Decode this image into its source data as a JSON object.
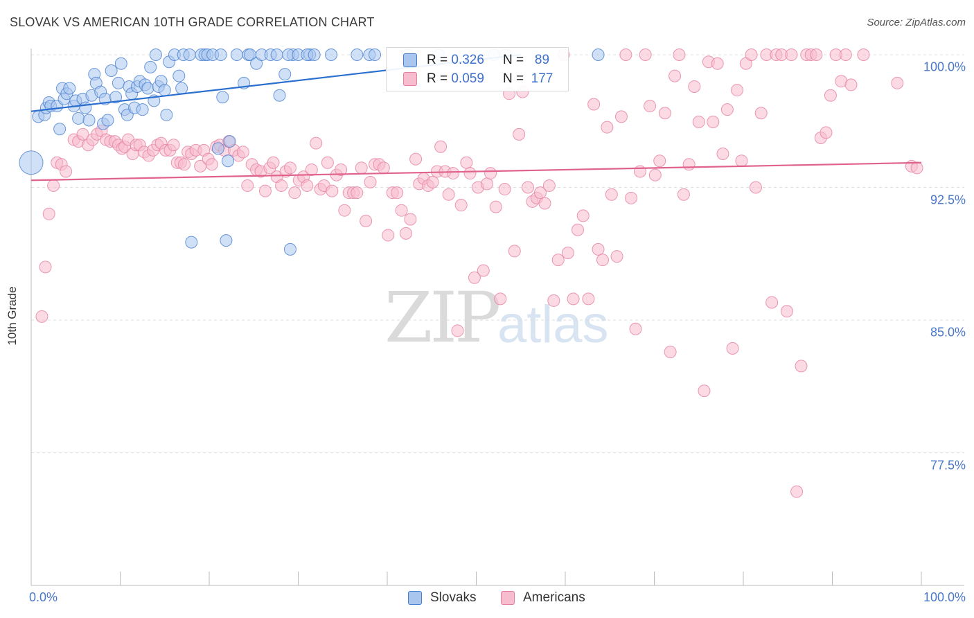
{
  "header": {
    "title": "SLOVAK VS AMERICAN 10TH GRADE CORRELATION CHART",
    "source": "Source: ZipAtlas.com"
  },
  "watermark": {
    "zip": "ZIP",
    "atlas": "atlas"
  },
  "legend": {
    "rows": [
      {
        "r_label": "R =",
        "r_value": "0.326",
        "n_label": "N =",
        "n_value": "89"
      },
      {
        "r_label": "R =",
        "r_value": "0.059",
        "n_label": "N =",
        "n_value": "177"
      }
    ]
  },
  "bottom_legend": {
    "slovaks": "Slovaks",
    "americans": "Americans"
  },
  "colors": {
    "blue_fill": "#a9c6ef",
    "blue_stroke": "#4a7fd0",
    "blue_line": "#2a6fd0",
    "pink_fill": "#f7bccd",
    "pink_stroke": "#e57fa0",
    "pink_line": "#e0628d",
    "axis_label": "#4a78c8",
    "grid": "#dcdcdc"
  },
  "chart_data": {
    "type": "scatter",
    "title": "SLOVAK VS AMERICAN 10TH GRADE CORRELATION CHART",
    "xlabel": "",
    "ylabel": "10th Grade",
    "xlim": [
      0,
      100
    ],
    "ylim": [
      70,
      100.5
    ],
    "y_ticks": [
      {
        "value": 100.0,
        "label": "100.0%"
      },
      {
        "value": 92.5,
        "label": "92.5%"
      },
      {
        "value": 85.0,
        "label": "85.0%"
      },
      {
        "value": 77.5,
        "label": "77.5%"
      }
    ],
    "x_ticks": [
      {
        "value": 0,
        "label": "0.0%"
      },
      {
        "value": 100,
        "label": "100.0%"
      }
    ],
    "grid": true,
    "legend_position": "top-center",
    "series": [
      {
        "name": "Slovaks",
        "R": 0.326,
        "N": 89,
        "trend": {
          "x": [
            0,
            55
          ],
          "y": [
            96.8,
            100.0
          ]
        },
        "points": [
          [
            0,
            93.9
          ],
          [
            0.8,
            96.5
          ],
          [
            1.5,
            96.6
          ],
          [
            1.7,
            97.0
          ],
          [
            2.0,
            97.3
          ],
          [
            2.2,
            97.1
          ],
          [
            2.9,
            97.1
          ],
          [
            3.2,
            95.8
          ],
          [
            3.5,
            98.1
          ],
          [
            3.7,
            97.5
          ],
          [
            4.0,
            97.8
          ],
          [
            4.3,
            98.1
          ],
          [
            4.8,
            97.1
          ],
          [
            5.0,
            97.4
          ],
          [
            5.3,
            96.4
          ],
          [
            5.8,
            97.5
          ],
          [
            6.1,
            97.0
          ],
          [
            6.5,
            96.3
          ],
          [
            6.8,
            97.7
          ],
          [
            7.1,
            98.9
          ],
          [
            7.3,
            98.4
          ],
          [
            7.8,
            97.9
          ],
          [
            8.1,
            96.1
          ],
          [
            8.3,
            97.5
          ],
          [
            8.6,
            96.3
          ],
          [
            9.0,
            99.1
          ],
          [
            9.5,
            97.6
          ],
          [
            9.8,
            98.4
          ],
          [
            10.1,
            99.5
          ],
          [
            10.5,
            96.9
          ],
          [
            10.8,
            96.6
          ],
          [
            11.0,
            98.2
          ],
          [
            11.3,
            97.8
          ],
          [
            11.6,
            97.0
          ],
          [
            11.9,
            98.2
          ],
          [
            12.2,
            98.5
          ],
          [
            12.5,
            96.9
          ],
          [
            12.8,
            98.3
          ],
          [
            13.1,
            98.1
          ],
          [
            13.4,
            99.3
          ],
          [
            13.8,
            97.4
          ],
          [
            14.0,
            100
          ],
          [
            14.3,
            98.2
          ],
          [
            14.6,
            98.5
          ],
          [
            15.0,
            98.0
          ],
          [
            15.2,
            96.6
          ],
          [
            15.5,
            99.6
          ],
          [
            16.1,
            100
          ],
          [
            16.6,
            98.8
          ],
          [
            16.9,
            98.1
          ],
          [
            17.1,
            100
          ],
          [
            17.8,
            100
          ],
          [
            18.0,
            89.4
          ],
          [
            19.1,
            100
          ],
          [
            19.5,
            100
          ],
          [
            19.8,
            100
          ],
          [
            20.4,
            100
          ],
          [
            21.0,
            94.7
          ],
          [
            21.3,
            100
          ],
          [
            21.5,
            97.6
          ],
          [
            21.9,
            89.5
          ],
          [
            22.3,
            95.1
          ],
          [
            22.1,
            94.0
          ],
          [
            23.1,
            100
          ],
          [
            23.9,
            98.4
          ],
          [
            24.4,
            100
          ],
          [
            24.6,
            100
          ],
          [
            25.3,
            99.5
          ],
          [
            25.9,
            100
          ],
          [
            26.9,
            100
          ],
          [
            27.6,
            100
          ],
          [
            27.9,
            97.7
          ],
          [
            28.5,
            98.9
          ],
          [
            29.1,
            89.0
          ],
          [
            29.4,
            100
          ],
          [
            28.9,
            100
          ],
          [
            30.0,
            100
          ],
          [
            31.3,
            100
          ],
          [
            31.0,
            100
          ],
          [
            31.8,
            100
          ],
          [
            33.7,
            100
          ],
          [
            36.6,
            100
          ],
          [
            38.0,
            100
          ],
          [
            38.6,
            100
          ],
          [
            42.3,
            100
          ],
          [
            45.8,
            100
          ],
          [
            52.0,
            100
          ],
          [
            53.3,
            100
          ],
          [
            63.7,
            100
          ]
        ]
      },
      {
        "name": "Americans",
        "R": 0.059,
        "N": 177,
        "trend": {
          "x": [
            0,
            100
          ],
          "y": [
            92.9,
            93.9
          ]
        },
        "points": [
          [
            1.2,
            85.2
          ],
          [
            1.6,
            88.0
          ],
          [
            2.0,
            91.0
          ],
          [
            2.5,
            92.6
          ],
          [
            2.9,
            93.9
          ],
          [
            3.4,
            93.8
          ],
          [
            3.9,
            93.4
          ],
          [
            4.8,
            95.2
          ],
          [
            5.3,
            95.1
          ],
          [
            5.8,
            95.5
          ],
          [
            6.4,
            94.9
          ],
          [
            6.9,
            95.2
          ],
          [
            7.4,
            95.5
          ],
          [
            7.9,
            95.7
          ],
          [
            8.4,
            95.2
          ],
          [
            8.9,
            95.1
          ],
          [
            9.4,
            95.1
          ],
          [
            9.8,
            94.9
          ],
          [
            10.2,
            94.7
          ],
          [
            10.5,
            94.8
          ],
          [
            10.9,
            95.2
          ],
          [
            11.4,
            94.4
          ],
          [
            11.8,
            94.9
          ],
          [
            12.2,
            94.9
          ],
          [
            12.7,
            94.5
          ],
          [
            13.2,
            94.3
          ],
          [
            13.7,
            94.6
          ],
          [
            14.2,
            94.9
          ],
          [
            14.6,
            95.0
          ],
          [
            15.1,
            94.6
          ],
          [
            15.6,
            94.6
          ],
          [
            16.0,
            94.9
          ],
          [
            16.4,
            93.9
          ],
          [
            16.8,
            93.9
          ],
          [
            17.2,
            93.8
          ],
          [
            17.6,
            94.5
          ],
          [
            18.0,
            94.4
          ],
          [
            18.5,
            94.6
          ],
          [
            19.0,
            93.7
          ],
          [
            19.4,
            94.6
          ],
          [
            19.9,
            94.1
          ],
          [
            20.3,
            93.8
          ],
          [
            20.8,
            94.8
          ],
          [
            21.2,
            94.9
          ],
          [
            21.7,
            94.6
          ],
          [
            22.2,
            95.1
          ],
          [
            22.8,
            94.6
          ],
          [
            23.3,
            94.3
          ],
          [
            23.8,
            94.5
          ],
          [
            24.3,
            92.6
          ],
          [
            24.8,
            93.8
          ],
          [
            25.3,
            93.5
          ],
          [
            25.8,
            93.4
          ],
          [
            26.3,
            92.3
          ],
          [
            26.8,
            93.6
          ],
          [
            27.2,
            93.9
          ],
          [
            27.6,
            93.1
          ],
          [
            28.1,
            92.6
          ],
          [
            28.6,
            93.4
          ],
          [
            29.1,
            93.6
          ],
          [
            29.6,
            92.2
          ],
          [
            30.1,
            92.9
          ],
          [
            30.6,
            93.1
          ],
          [
            31.0,
            92.6
          ],
          [
            31.5,
            93.5
          ],
          [
            32.0,
            95.0
          ],
          [
            32.5,
            92.4
          ],
          [
            32.9,
            92.6
          ],
          [
            33.3,
            93.9
          ],
          [
            33.8,
            92.3
          ],
          [
            34.3,
            93.2
          ],
          [
            34.8,
            93.5
          ],
          [
            35.2,
            91.2
          ],
          [
            35.7,
            92.2
          ],
          [
            36.2,
            92.2
          ],
          [
            36.6,
            92.2
          ],
          [
            37.1,
            93.6
          ],
          [
            37.6,
            90.6
          ],
          [
            38.1,
            92.8
          ],
          [
            38.6,
            93.8
          ],
          [
            39.1,
            93.8
          ],
          [
            39.6,
            93.6
          ],
          [
            40.1,
            89.8
          ],
          [
            40.6,
            92.2
          ],
          [
            41.1,
            92.2
          ],
          [
            41.6,
            91.2
          ],
          [
            42.1,
            89.9
          ],
          [
            42.6,
            90.7
          ],
          [
            43.2,
            94.1
          ],
          [
            43.6,
            92.7
          ],
          [
            44.1,
            93.0
          ],
          [
            44.6,
            92.6
          ],
          [
            45.1,
            92.8
          ],
          [
            45.6,
            93.4
          ],
          [
            46.0,
            94.8
          ],
          [
            46.5,
            93.4
          ],
          [
            46.9,
            92.1
          ],
          [
            47.4,
            93.3
          ],
          [
            47.9,
            84.4
          ],
          [
            48.3,
            91.5
          ],
          [
            48.9,
            93.9
          ],
          [
            49.3,
            93.3
          ],
          [
            49.8,
            87.4
          ],
          [
            50.2,
            92.5
          ],
          [
            50.8,
            87.8
          ],
          [
            51.2,
            92.7
          ],
          [
            51.6,
            93.3
          ],
          [
            52.2,
            91.4
          ],
          [
            52.7,
            86.2
          ],
          [
            53.2,
            92.4
          ],
          [
            53.7,
            97.8
          ],
          [
            54.3,
            88.9
          ],
          [
            54.8,
            95.5
          ],
          [
            55.2,
            97.9
          ],
          [
            55.8,
            92.5
          ],
          [
            56.3,
            91.7
          ],
          [
            56.8,
            91.9
          ],
          [
            57.2,
            92.2
          ],
          [
            57.7,
            91.6
          ],
          [
            58.2,
            92.6
          ],
          [
            58.7,
            86.1
          ],
          [
            59.2,
            88.4
          ],
          [
            59.8,
            100
          ],
          [
            60.3,
            88.8
          ],
          [
            60.9,
            86.2
          ],
          [
            61.4,
            90.1
          ],
          [
            62.0,
            90.9
          ],
          [
            62.6,
            86.2
          ],
          [
            63.2,
            97.2
          ],
          [
            63.7,
            89.0
          ],
          [
            64.2,
            88.4
          ],
          [
            64.7,
            95.9
          ],
          [
            65.2,
            92.1
          ],
          [
            65.8,
            88.6
          ],
          [
            66.3,
            96.5
          ],
          [
            66.8,
            100
          ],
          [
            67.4,
            91.9
          ],
          [
            67.9,
            84.5
          ],
          [
            68.4,
            93.4
          ],
          [
            69.0,
            100
          ],
          [
            69.5,
            97.1
          ],
          [
            70.1,
            93.2
          ],
          [
            70.6,
            94.0
          ],
          [
            71.2,
            96.7
          ],
          [
            71.8,
            83.2
          ],
          [
            72.3,
            98.8
          ],
          [
            72.8,
            100
          ],
          [
            73.3,
            92.1
          ],
          [
            73.9,
            93.8
          ],
          [
            74.5,
            98.2
          ],
          [
            75.0,
            96.2
          ],
          [
            75.6,
            81.0
          ],
          [
            76.1,
            99.6
          ],
          [
            76.6,
            96.2
          ],
          [
            77.1,
            99.5
          ],
          [
            77.7,
            94.4
          ],
          [
            78.2,
            96.9
          ],
          [
            78.8,
            83.4
          ],
          [
            79.3,
            98.0
          ],
          [
            79.8,
            94.0
          ],
          [
            80.3,
            99.5
          ],
          [
            80.9,
            100
          ],
          [
            81.4,
            92.5
          ],
          [
            82.0,
            96.7
          ],
          [
            82.6,
            100
          ],
          [
            83.2,
            86.0
          ],
          [
            83.7,
            100
          ],
          [
            84.3,
            100
          ],
          [
            84.9,
            85.5
          ],
          [
            85.4,
            100
          ],
          [
            86.0,
            75.3
          ],
          [
            86.5,
            82.4
          ],
          [
            87.1,
            100
          ],
          [
            87.6,
            100
          ],
          [
            88.2,
            100
          ],
          [
            88.7,
            95.3
          ],
          [
            89.3,
            95.6
          ],
          [
            89.8,
            97.7
          ],
          [
            90.4,
            100
          ],
          [
            91.0,
            98.5
          ],
          [
            91.5,
            100
          ],
          [
            92.1,
            98.3
          ],
          [
            93.5,
            100
          ],
          [
            97.3,
            98.4
          ],
          [
            98.9,
            93.7
          ],
          [
            99.5,
            93.6
          ]
        ]
      }
    ]
  }
}
